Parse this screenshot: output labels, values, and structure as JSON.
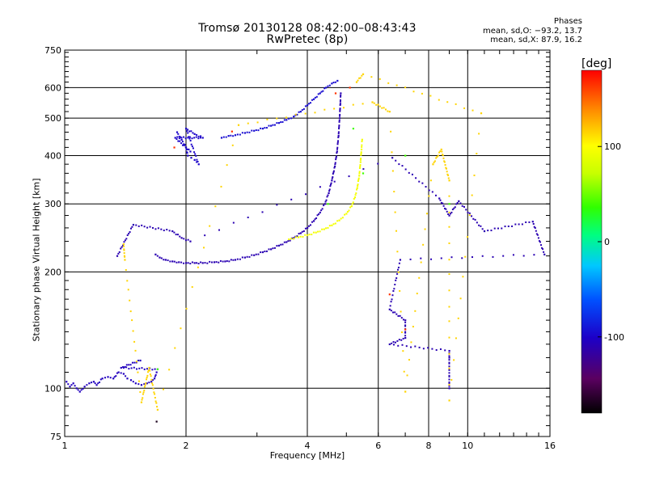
{
  "title_line1": "Tromsø 20130128 08:42:00–08:43:43",
  "title_line2": "RwPretec (8p)",
  "phases": {
    "title": "Phases",
    "line_o": "mean, sd,O: −93.2, 13.7",
    "line_x": "mean, sd,X:  87.9, 16.2"
  },
  "colorbar": {
    "label": "[deg]",
    "ticks": [
      100,
      0,
      -100
    ],
    "range": [
      -180,
      180
    ]
  },
  "chart_data": {
    "type": "scatter",
    "xlabel": "Frequency [MHz]",
    "ylabel": "Stationary phase Virtual Height [km]",
    "xscale": "log",
    "yscale": "log",
    "xlim": [
      1,
      16
    ],
    "ylim": [
      75,
      750
    ],
    "xticks": [
      1,
      2,
      4,
      6,
      8,
      10,
      16
    ],
    "yticks": [
      75,
      100,
      200,
      300,
      400,
      500,
      600,
      750
    ],
    "grid": true,
    "series": [
      {
        "points": [
          [
            1.01,
            104
          ],
          [
            1.03,
            101
          ],
          [
            1.05,
            103
          ],
          [
            1.07,
            100
          ],
          [
            1.09,
            98
          ],
          [
            1.12,
            101
          ],
          [
            1.15,
            103
          ],
          [
            1.18,
            104
          ],
          [
            1.2,
            102
          ],
          [
            1.24,
            106
          ],
          [
            1.28,
            107
          ],
          [
            1.32,
            106
          ],
          [
            1.36,
            110
          ],
          [
            1.4,
            109
          ],
          [
            1.43,
            106
          ],
          [
            1.46,
            105
          ],
          [
            1.5,
            103
          ],
          [
            1.55,
            102
          ],
          [
            1.6,
            103
          ],
          [
            1.64,
            104
          ],
          [
            1.67,
            106
          ],
          [
            1.69,
            110
          ],
          [
            1.7,
            112
          ],
          [
            1.38,
            113
          ],
          [
            1.54,
            118
          ]
        ],
        "phase": -105
      },
      {
        "points": [
          [
            1.68,
            222
          ],
          [
            1.72,
            218
          ],
          [
            1.78,
            215
          ],
          [
            1.85,
            213
          ],
          [
            1.92,
            212
          ],
          [
            2.0,
            211
          ],
          [
            2.1,
            211
          ],
          [
            2.2,
            211
          ],
          [
            2.35,
            212
          ],
          [
            2.5,
            213
          ],
          [
            2.65,
            215
          ],
          [
            2.8,
            218
          ],
          [
            2.95,
            221
          ],
          [
            3.1,
            225
          ],
          [
            3.25,
            229
          ],
          [
            3.4,
            234
          ],
          [
            3.55,
            239
          ],
          [
            3.7,
            245
          ],
          [
            3.85,
            252
          ],
          [
            4.0,
            260
          ],
          [
            4.15,
            271
          ],
          [
            4.3,
            285
          ],
          [
            4.42,
            300
          ],
          [
            4.52,
            320
          ],
          [
            4.6,
            345
          ],
          [
            4.68,
            375
          ],
          [
            4.74,
            410
          ],
          [
            4.78,
            450
          ],
          [
            4.81,
            500
          ],
          [
            4.83,
            545
          ],
          [
            4.84,
            580
          ]
        ],
        "phase": -110
      },
      {
        "points": [
          [
            2.45,
            445
          ],
          [
            2.55,
            450
          ],
          [
            2.65,
            452
          ],
          [
            2.8,
            458
          ],
          [
            2.95,
            464
          ],
          [
            3.1,
            470
          ],
          [
            3.25,
            478
          ],
          [
            3.4,
            486
          ],
          [
            3.55,
            495
          ],
          [
            3.7,
            505
          ],
          [
            3.85,
            520
          ],
          [
            4.0,
            540
          ],
          [
            4.15,
            560
          ],
          [
            4.3,
            580
          ],
          [
            4.45,
            600
          ],
          [
            4.6,
            615
          ],
          [
            4.75,
            625
          ]
        ],
        "phase": -95
      },
      {
        "points": [
          [
            1.9,
            460
          ],
          [
            1.95,
            440
          ],
          [
            2.0,
            420
          ],
          [
            2.02,
            400
          ],
          [
            2.06,
            395
          ],
          [
            2.1,
            390
          ],
          [
            2.15,
            380
          ],
          [
            2.0,
            470
          ],
          [
            2.1,
            455
          ],
          [
            2.2,
            445
          ],
          [
            1.88,
            445
          ],
          [
            2.05,
            410
          ]
        ],
        "phase": -100
      },
      {
        "points": [
          [
            3.6,
            243
          ],
          [
            3.8,
            246
          ],
          [
            4.0,
            249
          ],
          [
            4.2,
            253
          ],
          [
            4.4,
            258
          ],
          [
            4.6,
            264
          ],
          [
            4.8,
            272
          ],
          [
            5.0,
            283
          ],
          [
            5.15,
            296
          ],
          [
            5.25,
            312
          ],
          [
            5.32,
            330
          ],
          [
            5.38,
            355
          ],
          [
            5.42,
            385
          ],
          [
            5.45,
            415
          ],
          [
            5.47,
            440
          ]
        ],
        "phase": 95
      },
      {
        "points": [
          [
            1.35,
            220
          ],
          [
            1.48,
            265
          ],
          [
            1.85,
            255
          ],
          [
            1.95,
            245
          ],
          [
            2.05,
            240
          ],
          [
            6.5,
            395
          ],
          [
            8.5,
            310
          ],
          [
            9.0,
            280
          ],
          [
            9.5,
            305
          ],
          [
            11.0,
            255
          ],
          [
            14.5,
            270
          ],
          [
            15.5,
            222
          ],
          [
            6.8,
            215
          ],
          [
            6.4,
            160
          ],
          [
            7.0,
            150
          ],
          [
            7.0,
            135
          ],
          [
            6.4,
            130
          ],
          [
            9.0,
            125
          ],
          [
            9.0,
            120
          ],
          [
            9.0,
            100
          ]
        ],
        "phase": -110
      },
      {
        "points": [
          [
            1.4,
            236
          ],
          [
            1.41,
            215
          ],
          [
            1.55,
            92
          ],
          [
            1.62,
            113
          ],
          [
            1.7,
            88
          ],
          [
            2.7,
            480
          ],
          [
            5.8,
            550
          ],
          [
            6.4,
            520
          ],
          [
            7.0,
            98
          ],
          [
            8.2,
            380
          ],
          [
            8.6,
            415
          ],
          [
            9.0,
            345
          ],
          [
            9.0,
            93
          ],
          [
            10.8,
            515
          ],
          [
            5.5,
            650
          ],
          [
            5.3,
            620
          ]
        ],
        "phase": 115
      },
      {
        "points": [
          [
            6.4,
            175
          ],
          [
            7.0,
            142
          ],
          [
            5.1,
            600
          ],
          [
            4.7,
            580
          ],
          [
            2.6,
            462
          ],
          [
            1.87,
            420
          ]
        ],
        "phase": 165
      },
      {
        "points": [
          [
            1.7,
            112
          ],
          [
            4.5,
            300
          ],
          [
            9.0,
            300
          ],
          [
            5.2,
            470
          ],
          [
            5.5,
            360
          ],
          [
            7.0,
            400
          ]
        ],
        "phase": 40
      },
      {
        "points": [
          [
            1.69,
            82
          ]
        ],
        "phase": -170
      }
    ]
  }
}
